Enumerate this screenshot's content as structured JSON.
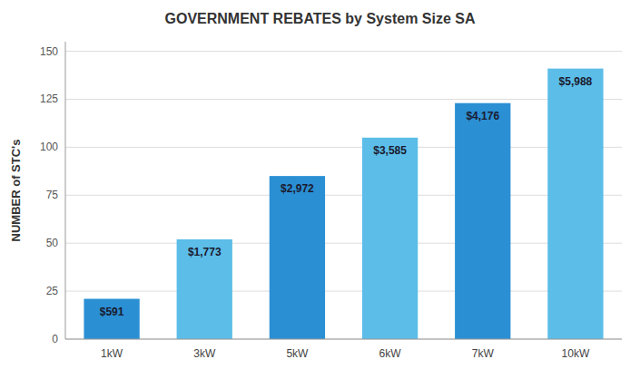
{
  "chart_data": {
    "type": "bar",
    "title": "GOVERNMENT REBATES by System Size SA",
    "ylabel": "NUMBER of STC's",
    "categories": [
      "1kW",
      "3kW",
      "5kW",
      "6kW",
      "7kW",
      "10kW"
    ],
    "values": [
      21,
      52,
      85,
      105,
      123,
      141
    ],
    "annotations": [
      "$591",
      "$1,773",
      "$2,972",
      "$3,585",
      "$4,176",
      "$5,988"
    ],
    "colors": [
      "#2b8fd4",
      "#5bbde8",
      "#2b8fd4",
      "#5bbde8",
      "#2b8fd4",
      "#5bbde8"
    ],
    "ylim": [
      0,
      155
    ],
    "yticks": [
      0,
      25,
      50,
      75,
      100,
      125,
      150
    ],
    "grid": true
  }
}
